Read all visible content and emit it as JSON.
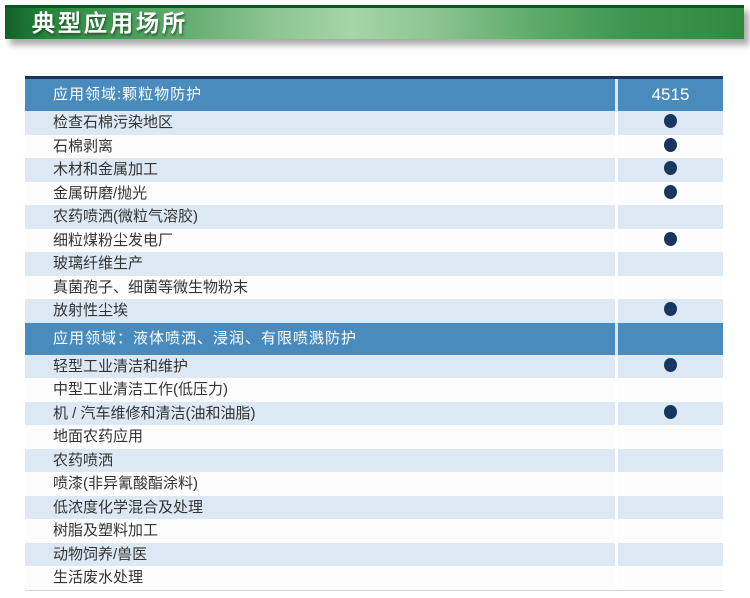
{
  "title_bar": {
    "label": "典型应用场所"
  },
  "table": {
    "model_header": "4515",
    "sections": [
      {
        "header": "应用领域:颗粒物防护",
        "show_model": true,
        "rows": [
          {
            "label": "检查石棉污染地区",
            "dot": true
          },
          {
            "label": "石棉剥离",
            "dot": true
          },
          {
            "label": "木材和金属加工",
            "dot": true
          },
          {
            "label": "金属研磨/抛光",
            "dot": true
          },
          {
            "label": "农药喷洒(微粒气溶胶)",
            "dot": false
          },
          {
            "label": "细粒煤粉尘发电厂",
            "dot": true
          },
          {
            "label": "玻璃纤维生产",
            "dot": false
          },
          {
            "label": "真菌孢子、细菌等微生物粉末",
            "dot": false
          },
          {
            "label": "放射性尘埃",
            "dot": true
          }
        ]
      },
      {
        "header": "应用领域：液体喷洒、浸润、有限喷溅防护",
        "show_model": false,
        "rows": [
          {
            "label": "轻型工业清洁和维护",
            "dot": true
          },
          {
            "label": "中型工业清洁工作(低压力)",
            "dot": false
          },
          {
            "label": "机 / 汽车维修和清洁(油和油脂)",
            "dot": true
          },
          {
            "label": "地面农药应用",
            "dot": false
          },
          {
            "label": "农药喷洒",
            "dot": false
          },
          {
            "label": "喷漆(非异氰酸酯涂料)",
            "dot": false
          },
          {
            "label": "低浓度化学混合及处理",
            "dot": false
          },
          {
            "label": "树脂及塑料加工",
            "dot": false
          },
          {
            "label": "动物饲养/兽医",
            "dot": false
          },
          {
            "label": "生活废水处理",
            "dot": false
          }
        ]
      }
    ]
  },
  "colors": {
    "header_blue": "#4a8bbe",
    "row_light_blue": "#dce8f4",
    "row_white": "#fdfdfd",
    "dot_navy": "#17375e",
    "table_top_border": "#16365c",
    "title_green_dark": "#135f26",
    "title_green_light": "#a6d4a9"
  }
}
